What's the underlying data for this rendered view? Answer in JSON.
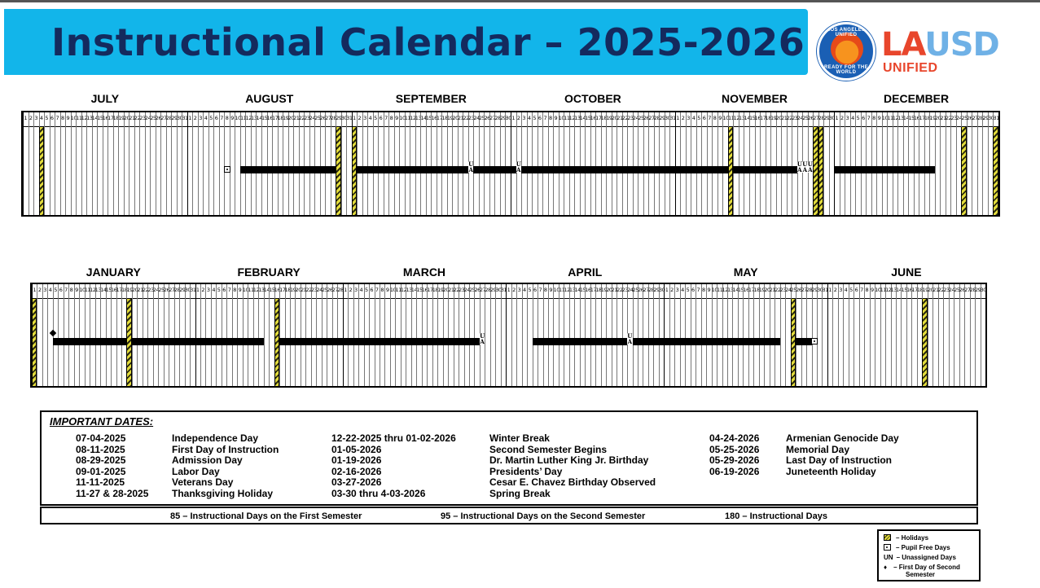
{
  "header": {
    "title": "Instructional Calendar – 2025-2026"
  },
  "logo": {
    "la": "LA",
    "usd": "USD",
    "unified": "UNIFIED",
    "seal_top": "LOS ANGELES UNIFIED",
    "seal_bottom": "READY FOR THE WORLD"
  },
  "colors": {
    "banner": "#12b5ea",
    "title": "#142a5e",
    "holiday_yellow": "#e3dc3c",
    "logo_red": "#e8462c",
    "logo_blue": "#6fb1e6"
  },
  "semester1": {
    "months": [
      {
        "name": "JULY",
        "days": 31
      },
      {
        "name": "AUGUST",
        "days": 31
      },
      {
        "name": "SEPTEMBER",
        "days": 30
      },
      {
        "name": "OCTOBER",
        "days": 31
      },
      {
        "name": "NOVEMBER",
        "days": 30
      },
      {
        "name": "DECEMBER",
        "days": 31
      }
    ],
    "holidays": [
      4,
      60,
      63,
      189,
      207,
      208,
      177,
      178,
      147,
      178,
      177
    ],
    "holiday_days": [
      [
        0,
        4
      ],
      [
        1,
        29
      ],
      [
        2,
        1
      ],
      [
        4,
        11
      ],
      [
        4,
        27
      ],
      [
        4,
        28
      ],
      [
        5,
        25
      ],
      [
        5,
        31
      ]
    ],
    "bars": [
      [
        [
          1,
          11
        ],
        [
          1,
          28
        ]
      ],
      [
        [
          2,
          2
        ],
        [
          2,
          22
        ]
      ],
      [
        [
          2,
          24
        ],
        [
          3,
          1
        ]
      ],
      [
        [
          3,
          3
        ],
        [
          4,
          10
        ]
      ],
      [
        [
          4,
          12
        ],
        [
          4,
          23
        ]
      ],
      [
        [
          5,
          1
        ],
        [
          5,
          19
        ]
      ]
    ],
    "unassigned": [
      [
        2,
        23
      ],
      [
        3,
        2
      ],
      [
        4,
        24
      ],
      [
        4,
        25
      ],
      [
        4,
        26
      ]
    ],
    "pupil_free": [
      [
        1,
        8
      ]
    ],
    "first_day_second_semester": []
  },
  "semester2": {
    "months": [
      {
        "name": "JANUARY",
        "days": 31
      },
      {
        "name": "FEBRUARY",
        "days": 28
      },
      {
        "name": "MARCH",
        "days": 31
      },
      {
        "name": "APRIL",
        "days": 30
      },
      {
        "name": "MAY",
        "days": 31
      },
      {
        "name": "JUNE",
        "days": 30
      }
    ],
    "holiday_days": [
      [
        0,
        1
      ],
      [
        0,
        19
      ],
      [
        1,
        16
      ],
      [
        4,
        25
      ],
      [
        5,
        19
      ]
    ],
    "bars": [
      [
        [
          0,
          5
        ],
        [
          0,
          18
        ]
      ],
      [
        [
          0,
          20
        ],
        [
          1,
          13
        ]
      ],
      [
        [
          1,
          17
        ],
        [
          2,
          26
        ]
      ],
      [
        [
          3,
          6
        ],
        [
          3,
          23
        ]
      ],
      [
        [
          3,
          25
        ],
        [
          4,
          22
        ]
      ],
      [
        [
          4,
          26
        ],
        [
          4,
          28
        ]
      ]
    ],
    "unassigned": [
      [
        2,
        27
      ],
      [
        3,
        24
      ]
    ],
    "pupil_free": [
      [
        4,
        29
      ]
    ],
    "first_day_second_semester": [
      [
        0,
        5
      ]
    ]
  },
  "important_dates": {
    "title": "IMPORTANT DATES:",
    "col1": [
      {
        "date": "07-04-2025",
        "event": "Independence Day"
      },
      {
        "date": "08-11-2025",
        "event": "First Day of Instruction"
      },
      {
        "date": "08-29-2025",
        "event": "Admission Day"
      },
      {
        "date": "09-01-2025",
        "event": "Labor Day"
      },
      {
        "date": "11-11-2025",
        "event": "Veterans Day"
      },
      {
        "date": "11-27 & 28-2025",
        "event": "Thanksgiving Holiday"
      }
    ],
    "col2": [
      {
        "date": "12-22-2025 thru 01-02-2026",
        "event": "Winter Break"
      },
      {
        "date": "01-05-2026",
        "event": "Second Semester Begins"
      },
      {
        "date": "01-19-2026",
        "event": "Dr. Martin Luther King Jr. Birthday"
      },
      {
        "date": "02-16-2026",
        "event": "Presidents’ Day"
      },
      {
        "date": "03-27-2026",
        "event": "Cesar E. Chavez Birthday Observed"
      },
      {
        "date": "03-30 thru 4-03-2026",
        "event": "Spring Break"
      }
    ],
    "col3": [
      {
        "date": "04-24-2026",
        "event": "Armenian Genocide Day"
      },
      {
        "date": "05-25-2026",
        "event": "Memorial Day"
      },
      {
        "date": "05-29-2026",
        "event": "Last Day of Instruction"
      },
      {
        "date": "06-19-2026",
        "event": "Juneteenth Holiday"
      }
    ]
  },
  "summary": {
    "first": "85 – Instructional Days on the First Semester",
    "second": "95 – Instructional Days on the Second Semester",
    "total": "180 – Instructional Days"
  },
  "legend": {
    "holidays": "– Holidays",
    "pupil_free": "– Pupil Free Days",
    "un_symbol": "UN",
    "unassigned": "– Unassigned Days",
    "first_day": "– First Day of Second",
    "first_day_2": "Semester"
  }
}
